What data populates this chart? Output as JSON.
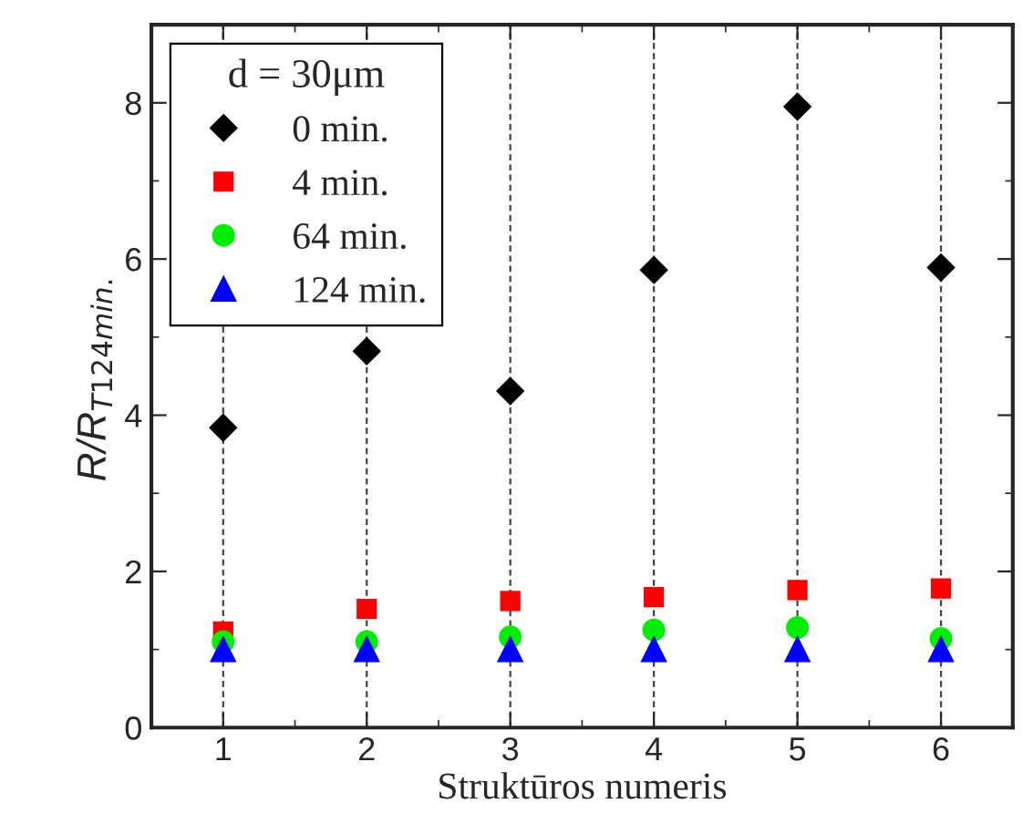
{
  "chart_data": {
    "type": "scatter",
    "xlabel": "Struktūros numeris",
    "ylabel": "R/R$_{T124min.}$",
    "legend_title": "d = 30μm",
    "x": [
      1,
      2,
      3,
      4,
      5,
      6
    ],
    "series": [
      {
        "name": "0 min.",
        "color": "#000000",
        "marker": "diamond",
        "values": [
          3.84,
          4.82,
          4.31,
          5.86,
          7.95,
          5.89
        ]
      },
      {
        "name": "4 min.",
        "color": "#ff0000",
        "marker": "square",
        "values": [
          1.23,
          1.52,
          1.62,
          1.67,
          1.76,
          1.78
        ]
      },
      {
        "name": "64 min.",
        "color": "#00ee00",
        "marker": "circle",
        "values": [
          1.1,
          1.1,
          1.16,
          1.25,
          1.28,
          1.14
        ]
      },
      {
        "name": "124 min.",
        "color": "#0000ff",
        "marker": "triangle",
        "values": [
          1.0,
          1.0,
          1.0,
          1.0,
          1.0,
          1.0
        ]
      }
    ],
    "xlim": [
      0.5,
      6.5
    ],
    "xticks": [
      1,
      2,
      3,
      4,
      5,
      6
    ],
    "ylim": [
      0,
      9
    ],
    "yticks": [
      0,
      2,
      4,
      6,
      8
    ],
    "grid": "x",
    "legend": "top left"
  }
}
